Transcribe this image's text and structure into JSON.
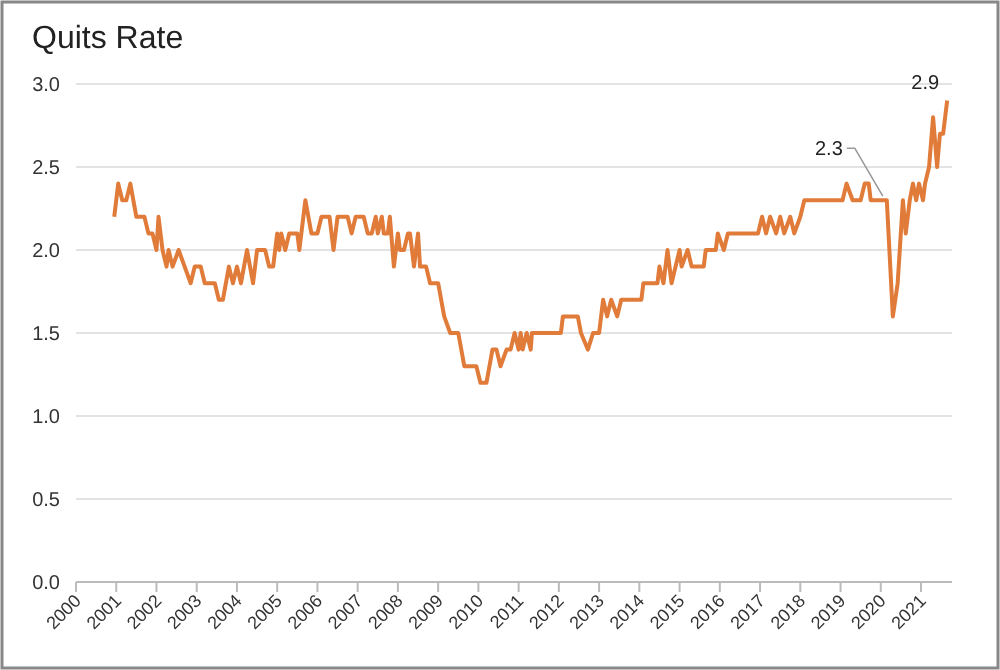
{
  "chart_data": {
    "type": "line",
    "title": "Quits Rate",
    "xlim": [
      2000,
      2021.77
    ],
    "xticks": [
      2000,
      2001,
      2002,
      2003,
      2004,
      2005,
      2006,
      2007,
      2008,
      2009,
      2010,
      2011,
      2012,
      2013,
      2014,
      2015,
      2016,
      2017,
      2018,
      2019,
      2020,
      2021
    ],
    "ylim": [
      0,
      3
    ],
    "yticks": [
      {
        "value": 0,
        "label": "0.0"
      },
      {
        "value": 0.5,
        "label": "0.5"
      },
      {
        "value": 1,
        "label": "1.0"
      },
      {
        "value": 1.5,
        "label": "1.5"
      },
      {
        "value": 2,
        "label": "2.0"
      },
      {
        "value": 2.5,
        "label": "2.5"
      },
      {
        "value": 3,
        "label": "3.0"
      }
    ],
    "grid": "y",
    "marker": "none",
    "line_style": "solid",
    "series": [
      {
        "color": "#e07b39",
        "x": [
          2000.95,
          2001.05,
          2001.15,
          2001.25,
          2001.35,
          2001.5,
          2001.7,
          2001.8,
          2001.9,
          2002.0,
          2002.05,
          2002.15,
          2002.25,
          2002.3,
          2002.4,
          2002.55,
          2002.7,
          2002.85,
          2002.95,
          2003.1,
          2003.2,
          2003.45,
          2003.55,
          2003.65,
          2003.8,
          2003.9,
          2004.0,
          2004.1,
          2004.25,
          2004.4,
          2004.5,
          2004.7,
          2004.8,
          2004.9,
          2005.0,
          2005.05,
          2005.1,
          2005.2,
          2005.3,
          2005.5,
          2005.55,
          2005.7,
          2005.85,
          2006.0,
          2006.1,
          2006.3,
          2006.4,
          2006.5,
          2006.75,
          2006.85,
          2006.95,
          2007.15,
          2007.25,
          2007.35,
          2007.45,
          2007.5,
          2007.6,
          2007.65,
          2007.75,
          2007.8,
          2007.9,
          2008.0,
          2008.05,
          2008.15,
          2008.25,
          2008.3,
          2008.4,
          2008.5,
          2008.55,
          2008.7,
          2008.8,
          2009.0,
          2009.15,
          2009.3,
          2009.5,
          2009.65,
          2009.95,
          2010.05,
          2010.2,
          2010.35,
          2010.45,
          2010.55,
          2010.7,
          2010.8,
          2010.9,
          2011.0,
          2011.05,
          2011.1,
          2011.2,
          2011.3,
          2011.33,
          2012.05,
          2012.1,
          2012.47,
          2012.55,
          2012.72,
          2012.85,
          2013.0,
          2013.1,
          2013.2,
          2013.3,
          2013.45,
          2013.55,
          2014.05,
          2014.1,
          2014.45,
          2014.5,
          2014.6,
          2014.7,
          2014.8,
          2015.0,
          2015.05,
          2015.2,
          2015.3,
          2015.35,
          2015.6,
          2015.65,
          2015.9,
          2015.95,
          2016.1,
          2016.2,
          2016.35,
          2016.95,
          2017.05,
          2017.15,
          2017.25,
          2017.4,
          2017.5,
          2017.6,
          2017.75,
          2017.85,
          2018.0,
          2018.1,
          2018.3,
          2019.05,
          2019.15,
          2019.3,
          2019.5,
          2019.6,
          2019.7,
          2019.75,
          2020.05,
          2020.15,
          2020.3,
          2020.42,
          2020.55,
          2020.62,
          2020.72,
          2020.8,
          2020.88,
          2020.95,
          2021.05,
          2021.1,
          2021.2,
          2021.3,
          2021.4,
          2021.47,
          2021.55,
          2021.65
        ],
        "values": [
          2.2,
          2.4,
          2.3,
          2.3,
          2.4,
          2.2,
          2.2,
          2.1,
          2.1,
          2.0,
          2.2,
          2.0,
          1.9,
          2.0,
          1.9,
          2.0,
          1.9,
          1.8,
          1.9,
          1.9,
          1.8,
          1.8,
          1.7,
          1.7,
          1.9,
          1.8,
          1.9,
          1.8,
          2.0,
          1.8,
          2.0,
          2.0,
          1.9,
          1.9,
          2.1,
          2.0,
          2.1,
          2.0,
          2.1,
          2.1,
          2.0,
          2.3,
          2.1,
          2.1,
          2.2,
          2.2,
          2.0,
          2.2,
          2.2,
          2.1,
          2.2,
          2.2,
          2.1,
          2.1,
          2.2,
          2.1,
          2.2,
          2.1,
          2.1,
          2.2,
          1.9,
          2.1,
          2.0,
          2.0,
          2.1,
          2.1,
          1.9,
          2.1,
          1.9,
          1.9,
          1.8,
          1.8,
          1.6,
          1.5,
          1.5,
          1.3,
          1.3,
          1.2,
          1.2,
          1.4,
          1.4,
          1.3,
          1.4,
          1.4,
          1.5,
          1.4,
          1.5,
          1.4,
          1.5,
          1.4,
          1.5,
          1.5,
          1.6,
          1.6,
          1.5,
          1.4,
          1.5,
          1.5,
          1.7,
          1.6,
          1.7,
          1.6,
          1.7,
          1.7,
          1.8,
          1.8,
          1.9,
          1.8,
          2.0,
          1.8,
          2.0,
          1.9,
          2.0,
          1.9,
          1.9,
          1.9,
          2.0,
          2.0,
          2.1,
          2.0,
          2.1,
          2.1,
          2.1,
          2.2,
          2.1,
          2.2,
          2.1,
          2.2,
          2.1,
          2.2,
          2.1,
          2.2,
          2.3,
          2.3,
          2.3,
          2.4,
          2.3,
          2.3,
          2.4,
          2.4,
          2.3,
          2.3,
          2.3,
          1.6,
          1.8,
          2.3,
          2.1,
          2.3,
          2.4,
          2.3,
          2.4,
          2.3,
          2.4,
          2.5,
          2.8,
          2.5,
          2.7,
          2.7,
          2.9
        ]
      }
    ],
    "annotations": [
      {
        "text": "2.3",
        "x": 2020.05,
        "y": 2.3
      },
      {
        "text": "2.9",
        "x": 2021.65,
        "y": 2.9
      }
    ]
  }
}
